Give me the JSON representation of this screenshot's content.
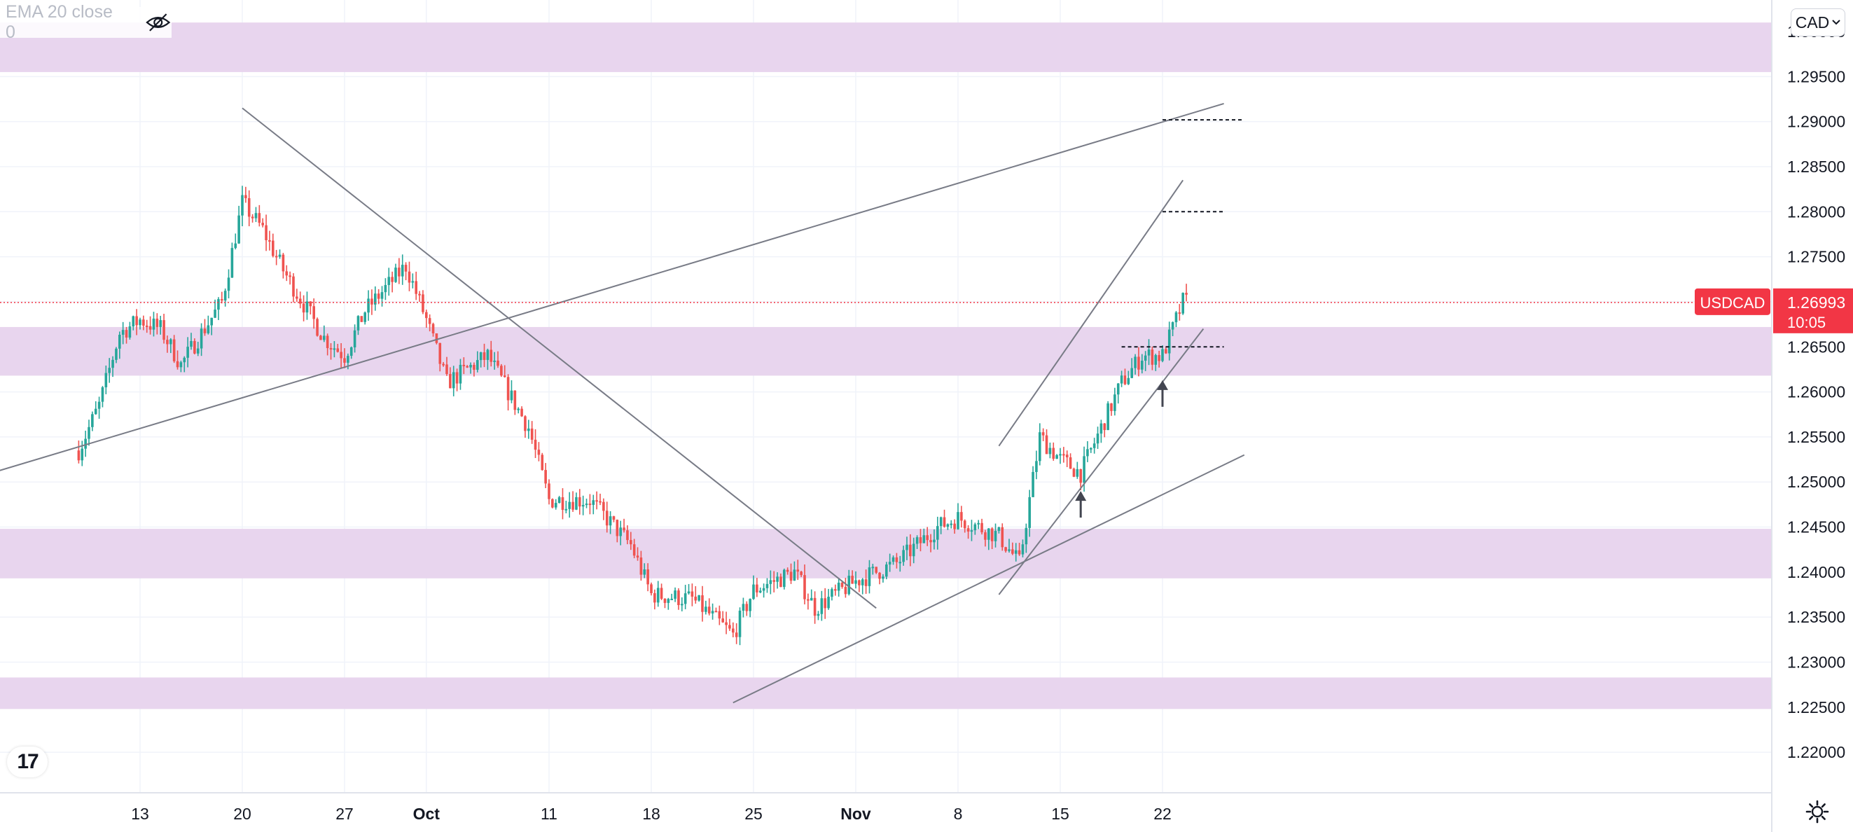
{
  "indicator": {
    "label": "EMA 20 close 0",
    "visibility_icon": "eye-crossed-icon"
  },
  "currency_selector": {
    "label": "CAD"
  },
  "logo": {
    "text": "17",
    "icon": "tradingview-logo-icon"
  },
  "settings": {
    "icon": "gear-icon"
  },
  "colors": {
    "up": "#26a69a",
    "down": "#ef5350",
    "zone": "#e8d5ee",
    "trendline": "#787b86",
    "price_line": "#f23645",
    "grid": "#f0f3fa"
  },
  "chart_data": {
    "type": "candlestick",
    "symbol": "USDCAD",
    "price_axis_currency": "CAD",
    "last_price": "1.26993",
    "countdown": "10:05",
    "ylim": [
      1.2155,
      1.3035
    ],
    "y_ticks": [
      "1.22000",
      "1.22500",
      "1.23000",
      "1.23500",
      "1.24000",
      "1.24500",
      "1.25000",
      "1.25500",
      "1.26000",
      "1.26500",
      "1.27000",
      "1.27500",
      "1.28000",
      "1.28500",
      "1.29000",
      "1.29500",
      "1.30000"
    ],
    "x_ticks": [
      {
        "label": "13",
        "date": "2021-09-13"
      },
      {
        "label": "20",
        "date": "2021-09-20"
      },
      {
        "label": "27",
        "date": "2021-09-27"
      },
      {
        "label": "Oct",
        "date": "2021-10-01"
      },
      {
        "label": "11",
        "date": "2021-10-11"
      },
      {
        "label": "18",
        "date": "2021-10-18"
      },
      {
        "label": "25",
        "date": "2021-10-25"
      },
      {
        "label": "Nov",
        "date": "2021-11-01"
      },
      {
        "label": "8",
        "date": "2021-11-08"
      },
      {
        "label": "15",
        "date": "2021-11-15"
      },
      {
        "label": "22",
        "date": "2021-11-22"
      }
    ],
    "bold_ticks": [
      "Oct",
      "Nov"
    ],
    "price_path": [
      [
        "2021-09-08",
        1.2535
      ],
      [
        "2021-09-09",
        1.2585
      ],
      [
        "2021-09-10",
        1.2665
      ],
      [
        "2021-09-13",
        1.268
      ],
      [
        "2021-09-14",
        1.267
      ],
      [
        "2021-09-15",
        1.263
      ],
      [
        "2021-09-17",
        1.27
      ],
      [
        "2021-09-20",
        1.281
      ],
      [
        "2021-09-21",
        1.278
      ],
      [
        "2021-09-22",
        1.2735
      ],
      [
        "2021-09-24",
        1.266
      ],
      [
        "2021-09-27",
        1.264
      ],
      [
        "2021-09-28",
        1.269
      ],
      [
        "2021-09-30",
        1.274
      ],
      [
        "2021-10-01",
        1.268
      ],
      [
        "2021-10-04",
        1.261
      ],
      [
        "2021-10-06",
        1.264
      ],
      [
        "2021-10-08",
        1.256
      ],
      [
        "2021-10-11",
        1.248
      ],
      [
        "2021-10-13",
        1.248
      ],
      [
        "2021-10-15",
        1.243
      ],
      [
        "2021-10-18",
        1.2375
      ],
      [
        "2021-10-20",
        1.237
      ],
      [
        "2021-10-22",
        1.233
      ],
      [
        "2021-10-25",
        1.238
      ],
      [
        "2021-10-27",
        1.24
      ],
      [
        "2021-10-28",
        1.236
      ],
      [
        "2021-11-01",
        1.239
      ],
      [
        "2021-11-03",
        1.241
      ],
      [
        "2021-11-05",
        1.245
      ],
      [
        "2021-11-08",
        1.246
      ],
      [
        "2021-11-10",
        1.244
      ],
      [
        "2021-11-11",
        1.241
      ],
      [
        "2021-11-12",
        1.255
      ],
      [
        "2021-11-15",
        1.2525
      ],
      [
        "2021-11-16",
        1.251
      ],
      [
        "2021-11-18",
        1.261
      ],
      [
        "2021-11-19",
        1.264
      ],
      [
        "2021-11-22",
        1.264
      ],
      [
        "2021-11-23",
        1.27
      ]
    ],
    "supply_demand_zones": [
      [
        1.2955,
        1.301
      ],
      [
        1.2618,
        1.2672
      ],
      [
        1.2393,
        1.2448
      ],
      [
        1.2248,
        1.2283
      ]
    ],
    "trendlines": [
      {
        "from": [
          "2021-09-19",
          1.2915
        ],
        "to": [
          "2021-11-02",
          1.236
        ]
      },
      {
        "from": [
          "2021-09-01",
          1.2505
        ],
        "to": [
          "2021-11-25",
          1.292
        ]
      },
      {
        "from": [
          "2021-10-22",
          1.2255
        ],
        "to": [
          "2021-11-26",
          1.253
        ]
      },
      {
        "from": [
          "2021-11-10",
          1.2375
        ],
        "to": [
          "2021-11-24",
          1.267
        ]
      },
      {
        "from": [
          "2021-11-10",
          1.254
        ],
        "to": [
          "2021-11-23",
          1.2835
        ]
      }
    ],
    "target_levels": [
      {
        "price": 1.2902,
        "from": "2021-11-21",
        "to": "2021-11-26"
      },
      {
        "price": 1.28,
        "from": "2021-11-21",
        "to": "2021-11-25"
      },
      {
        "price": 1.265,
        "from": "2021-11-18",
        "to": "2021-11-25"
      }
    ],
    "arrows": [
      {
        "date": "2021-11-16",
        "price": 1.249
      },
      {
        "date": "2021-11-22",
        "price": 1.2613
      }
    ]
  }
}
